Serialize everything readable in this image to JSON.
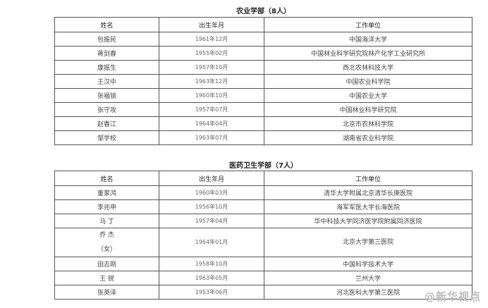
{
  "sections": [
    {
      "title": "农业学部（8人）",
      "headers": [
        "姓名",
        "出生年月",
        "工作单位"
      ],
      "rows": [
        [
          "包振民",
          "1961年12月",
          "中国海洋大学"
        ],
        [
          "蒋剑春",
          "1955年02月",
          "中国林业科学研究院林产化学工业研究所"
        ],
        [
          "康振生",
          "1957年10月",
          "西北农林科技大学"
        ],
        [
          "王汉中",
          "1963年12月",
          "中国农业科学院"
        ],
        [
          "张福锁",
          "1960年10月",
          "中国农业大学"
        ],
        [
          "张守攻",
          "1957年07月",
          "中国林业科学研究院"
        ],
        [
          "赵春江",
          "1964年04月",
          "北京市农林科学院"
        ],
        [
          "邹学校",
          "1963年07月",
          "湖南省农业科学院"
        ]
      ]
    },
    {
      "title": "医药卫生学部（7人）",
      "headers": [
        "姓名",
        "出生年月",
        "工作单位"
      ],
      "rows": [
        [
          "董家鸿",
          "1960年03月",
          "清华大学附属北京清华长庚医院"
        ],
        [
          "李兆申",
          "1956年10月",
          "海军军医大学长海医院"
        ],
        [
          "马 丁",
          "1957年04月",
          "华中科技大学同济医学院附属同济医院"
        ],
        [
          "乔 杰\n（女）",
          "1964年01月",
          "北京大学第三医院"
        ],
        [
          "田志刚",
          "1958年10月",
          "中国科学技术大学"
        ],
        [
          "王 锐",
          "1963年05月",
          "兰州大学"
        ],
        [
          "张英泽",
          "1953年06月",
          "河北医科大学第三医院"
        ]
      ]
    }
  ],
  "watermark": "@新华视点"
}
